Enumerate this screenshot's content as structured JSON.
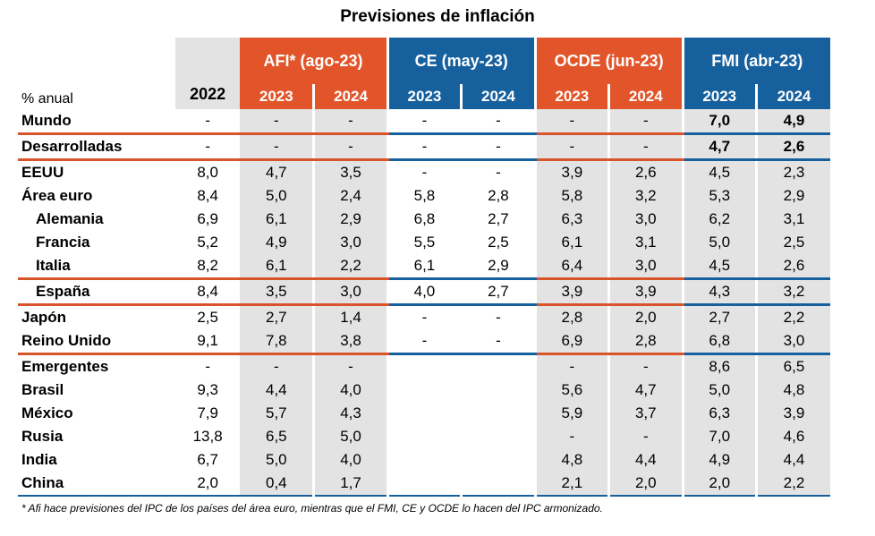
{
  "title": "Previsiones de inflación",
  "header": {
    "unit_label": "% anual",
    "year_2022": "2022",
    "groups": [
      "AFI* (ago-23)",
      "CE (may-23)",
      "OCDE (jun-23)",
      "FMI (abr-23)"
    ],
    "years": [
      "2023",
      "2024",
      "2023",
      "2024",
      "2023",
      "2024",
      "2023",
      "2024"
    ]
  },
  "rows": [
    {
      "label": "Mundo",
      "values": [
        "-",
        "-",
        "-",
        "-",
        "-",
        "-",
        "-",
        "7,0",
        "4,9"
      ]
    },
    {
      "label": "Desarrolladas",
      "values": [
        "-",
        "-",
        "-",
        "-",
        "-",
        "-",
        "-",
        "4,7",
        "2,6"
      ]
    },
    {
      "label": "EEUU",
      "values": [
        "8,0",
        "4,7",
        "3,5",
        "-",
        "-",
        "3,9",
        "2,6",
        "4,5",
        "2,3"
      ]
    },
    {
      "label": "Área euro",
      "values": [
        "8,4",
        "5,0",
        "2,4",
        "5,8",
        "2,8",
        "5,8",
        "3,2",
        "5,3",
        "2,9"
      ]
    },
    {
      "label": "Alemania",
      "values": [
        "6,9",
        "6,1",
        "2,9",
        "6,8",
        "2,7",
        "6,3",
        "3,0",
        "6,2",
        "3,1"
      ]
    },
    {
      "label": "Francia",
      "values": [
        "5,2",
        "4,9",
        "3,0",
        "5,5",
        "2,5",
        "6,1",
        "3,1",
        "5,0",
        "2,5"
      ]
    },
    {
      "label": "Italia",
      "values": [
        "8,2",
        "6,1",
        "2,2",
        "6,1",
        "2,9",
        "6,4",
        "3,0",
        "4,5",
        "2,6"
      ]
    },
    {
      "label": "España",
      "values": [
        "8,4",
        "3,5",
        "3,0",
        "4,0",
        "2,7",
        "3,9",
        "3,9",
        "4,3",
        "3,2"
      ]
    },
    {
      "label": "Japón",
      "values": [
        "2,5",
        "2,7",
        "1,4",
        "-",
        "-",
        "2,8",
        "2,0",
        "2,7",
        "2,2"
      ]
    },
    {
      "label": "Reino Unido",
      "values": [
        "9,1",
        "7,8",
        "3,8",
        "-",
        "-",
        "6,9",
        "2,8",
        "6,8",
        "3,0"
      ]
    },
    {
      "label": "Emergentes",
      "values": [
        "-",
        "-",
        "-",
        "",
        "",
        "-",
        "-",
        "8,6",
        "6,5"
      ]
    },
    {
      "label": "Brasil",
      "values": [
        "9,3",
        "4,4",
        "4,0",
        "",
        "",
        "5,6",
        "4,7",
        "5,0",
        "4,8"
      ]
    },
    {
      "label": "México",
      "values": [
        "7,9",
        "5,7",
        "4,3",
        "",
        "",
        "5,9",
        "3,7",
        "6,3",
        "3,9"
      ]
    },
    {
      "label": "Rusia",
      "values": [
        "13,8",
        "6,5",
        "5,0",
        "",
        "",
        "-",
        "-",
        "7,0",
        "4,6"
      ]
    },
    {
      "label": "India",
      "values": [
        "6,7",
        "5,0",
        "4,0",
        "",
        "",
        "4,8",
        "4,4",
        "4,9",
        "4,4"
      ]
    },
    {
      "label": "China",
      "values": [
        "2,0",
        "0,4",
        "1,7",
        "",
        "",
        "2,1",
        "2,0",
        "2,0",
        "2,2"
      ]
    }
  ],
  "footnote": "* Afi hace previsiones del IPC de los países del área euro, mientras que el FMI, CE y OCDE lo hacen del IPC armonizado.",
  "colors": {
    "orange": "#e2552a",
    "blue": "#17609e",
    "grey": "#e3e3e3"
  }
}
